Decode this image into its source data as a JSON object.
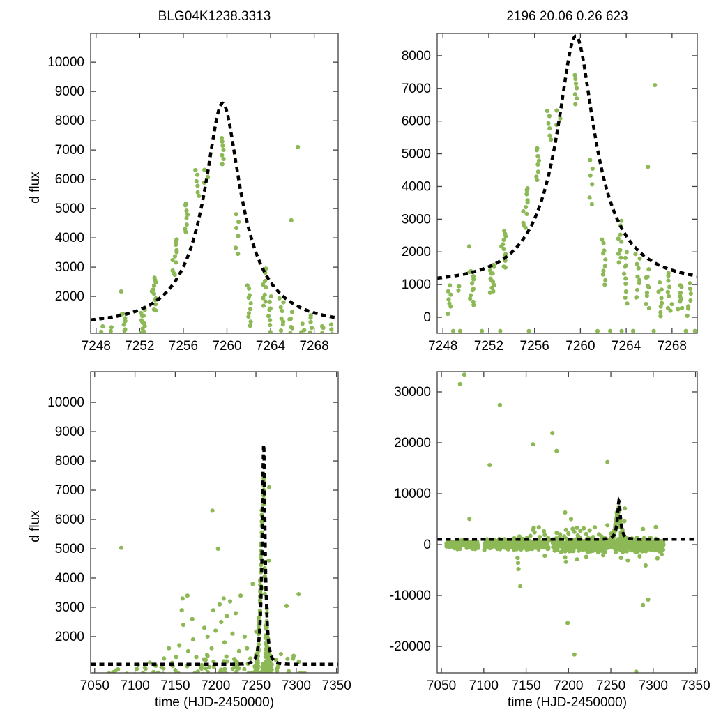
{
  "figure": {
    "left_title": "BLG04K1238.3313",
    "right_title": "2196  20.06  0.26  623",
    "y_axis_label": "d flux",
    "x_axis_label": "time (HJD-2450000)",
    "point_color": "#8cb956",
    "curve_color": "#000000",
    "frame_color": "#404040"
  },
  "chart_data": {
    "type": "scatter",
    "description": "Microlensing event difference-flux light curve: green photometric points with black dashed Paczynski model fit. Top row zooms on the event (HJD 7248-7270); bottom row shows the full season (7050-7350). Left column y-range ~2000-10000, top-right 0-8000, bottom-right -20000..30000.",
    "panels": [
      {
        "id": "top-left",
        "title": "BLG04K1238.3313",
        "ylabel": "d flux",
        "xlabel": "",
        "xlim": [
          7247.5,
          7270.2
        ],
        "ylim": [
          740,
          10980
        ],
        "xticks": [
          7248,
          7252,
          7256,
          7260,
          7264,
          7268
        ],
        "yticks": [
          2000,
          3000,
          4000,
          5000,
          6000,
          7000,
          8000,
          9000,
          10000
        ],
        "datasets": [
          "event"
        ]
      },
      {
        "id": "top-right",
        "title": "2196  20.06  0.26  623",
        "ylabel": "",
        "xlabel": "",
        "xlim": [
          7247.5,
          7270.2
        ],
        "ylim": [
          -490,
          8680
        ],
        "xticks": [
          7248,
          7252,
          7256,
          7260,
          7264,
          7268
        ],
        "yticks": [
          0,
          1000,
          2000,
          3000,
          4000,
          5000,
          6000,
          7000,
          8000
        ],
        "datasets": [
          "event"
        ]
      },
      {
        "id": "bottom-left",
        "title": "",
        "ylabel": "d flux",
        "xlabel": "time (HJD-2450000)",
        "xlim": [
          7045,
          7352
        ],
        "ylim": [
          760,
          11050
        ],
        "xticks": [
          7050,
          7100,
          7150,
          7200,
          7250,
          7300,
          7350
        ],
        "yticks": [
          2000,
          3000,
          4000,
          5000,
          6000,
          7000,
          8000,
          9000,
          10000
        ],
        "datasets": [
          "event",
          "season",
          "band",
          "outliers"
        ]
      },
      {
        "id": "bottom-right",
        "title": "",
        "ylabel": "",
        "xlabel": "time (HJD-2450000)",
        "xlim": [
          7045,
          7352
        ],
        "ylim": [
          -25200,
          33970
        ],
        "xticks": [
          7050,
          7100,
          7150,
          7200,
          7250,
          7300,
          7350
        ],
        "yticks": [
          -20000,
          -10000,
          0,
          10000,
          20000,
          30000
        ],
        "datasets": [
          "event",
          "season",
          "band",
          "outliers"
        ]
      }
    ],
    "model_curve": {
      "shape": "paczynski",
      "t0": 7259.6,
      "tE": 6.0,
      "u0": 0.26,
      "baseline_flux": 1050,
      "peak_flux": 8600,
      "style": "dashed"
    },
    "event_clusters": [
      [
        7248.6,
        150,
        950,
        7
      ],
      [
        7249.4,
        820,
        950,
        2
      ],
      [
        7250.5,
        400,
        1450,
        11
      ],
      [
        7252.3,
        760,
        1600,
        12
      ],
      [
        7253.3,
        1500,
        2650,
        12
      ],
      [
        7255.2,
        2700,
        4000,
        11
      ],
      [
        7256.2,
        4200,
        5200,
        8
      ],
      [
        7257.3,
        5400,
        6350,
        6
      ],
      [
        7258.1,
        5900,
        6300,
        3
      ],
      [
        7259.6,
        6550,
        7400,
        7
      ],
      [
        7260.9,
        3450,
        4850,
        6
      ],
      [
        7262.0,
        1000,
        2350,
        10
      ],
      [
        7263.4,
        1650,
        2900,
        9
      ],
      [
        7263.9,
        470,
        1990,
        10
      ],
      [
        7265.0,
        530,
        1880,
        10
      ],
      [
        7265.9,
        320,
        1430,
        9
      ],
      [
        7267.0,
        60,
        1020,
        8
      ],
      [
        7267.8,
        150,
        1390,
        9
      ],
      [
        7268.7,
        210,
        1020,
        8
      ],
      [
        7269.5,
        60,
        1000,
        7
      ]
    ],
    "event_outliers": [
      [
        7266.5,
        7100
      ],
      [
        7265.9,
        4600
      ],
      [
        7250.3,
        2170
      ]
    ],
    "event_negatives": [
      [
        7248.9,
        -420
      ],
      [
        7249.5,
        -420
      ],
      [
        7251.4,
        -420
      ],
      [
        7253.0,
        -420
      ],
      [
        7255.5,
        -420
      ],
      [
        7261.5,
        -420
      ],
      [
        7262.6,
        -420
      ],
      [
        7263.6,
        -420
      ],
      [
        7264.6,
        -420
      ],
      [
        7266.4,
        -420
      ],
      [
        7269.2,
        -420
      ],
      [
        7270.0,
        -420
      ]
    ],
    "season_points": [
      [
        7083,
        5030
      ],
      [
        7079,
        880
      ],
      [
        7133,
        950
      ],
      [
        7136,
        1250
      ],
      [
        7142,
        1600
      ],
      [
        7146,
        1100
      ],
      [
        7151,
        1300
      ],
      [
        7155,
        1700
      ],
      [
        7158,
        2900
      ],
      [
        7159,
        3300
      ],
      [
        7160,
        2400
      ],
      [
        7165,
        3400
      ],
      [
        7166,
        1500
      ],
      [
        7171,
        2600
      ],
      [
        7172,
        1900
      ],
      [
        7176,
        1300
      ],
      [
        7178,
        800
      ],
      [
        7186,
        2300
      ],
      [
        7190,
        2000
      ],
      [
        7195,
        1600
      ],
      [
        7196,
        6300
      ],
      [
        7197,
        2900
      ],
      [
        7200,
        2200
      ],
      [
        7203,
        5000
      ],
      [
        7205,
        3100
      ],
      [
        7207,
        2500
      ],
      [
        7210,
        3300
      ],
      [
        7211,
        1800
      ],
      [
        7214,
        2700
      ],
      [
        7218,
        3200
      ],
      [
        7221,
        2100
      ],
      [
        7225,
        2800
      ],
      [
        7229,
        1500
      ],
      [
        7231,
        3400
      ],
      [
        7236,
        2000
      ],
      [
        7239,
        1600
      ],
      [
        7243,
        1250
      ],
      [
        7246,
        3800
      ],
      [
        7281,
        1400
      ],
      [
        7288,
        3050
      ],
      [
        7296,
        1250
      ],
      [
        7303,
        3450
      ]
    ],
    "season_outliers": [
      [
        7072,
        31500
      ],
      [
        7077,
        33400
      ],
      [
        7107,
        15600
      ],
      [
        7119,
        27400
      ],
      [
        7158,
        19700
      ],
      [
        7181,
        21900
      ],
      [
        7186,
        18400
      ],
      [
        7246,
        16200
      ],
      [
        7143,
        -8200
      ],
      [
        7199,
        -15400
      ],
      [
        7207,
        -21600
      ],
      [
        7280,
        -25000
      ],
      [
        7288,
        -11900
      ],
      [
        7294,
        -10800
      ]
    ],
    "noise_downspikes": [
      [
        7140,
        -2600
      ],
      [
        7140.5,
        -3600
      ],
      [
        7141,
        -4800
      ],
      [
        7172,
        -2200
      ],
      [
        7196,
        -2500
      ],
      [
        7197,
        -3400
      ],
      [
        7210,
        -2900
      ],
      [
        7221,
        -2400
      ],
      [
        7241,
        -2100
      ],
      [
        7262,
        -2600
      ],
      [
        7270,
        -3100
      ],
      [
        7284,
        -2300
      ],
      [
        7291,
        -4100
      ],
      [
        7305,
        -2700
      ],
      [
        7310,
        -1900
      ]
    ],
    "noise_band_segments": [
      [
        7056,
        7093,
        900,
        3
      ],
      [
        7101,
        7176,
        1200,
        3
      ],
      [
        7182,
        7246,
        1600,
        4
      ],
      [
        7252,
        7312,
        1500,
        4
      ]
    ],
    "point_color": "#8cb956",
    "curve_color": "#000000"
  }
}
